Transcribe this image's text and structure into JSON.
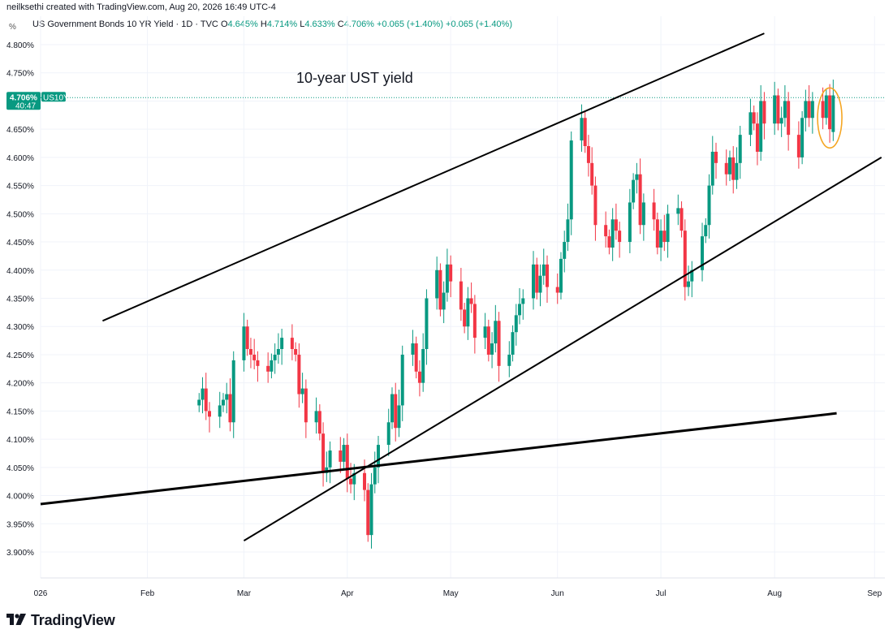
{
  "header": {
    "credit": "neilksethi created with TradingView.com, Aug 20, 2026 16:49 UTC-4"
  },
  "legend": {
    "symbol": "US Government Bonds 10 YR Yield · 1D · TVC",
    "o_label": "O",
    "o_value": "4.645%",
    "h_label": "H",
    "h_value": "4.714%",
    "l_label": "L",
    "l_value": "4.633%",
    "c_label": "C",
    "c_value": "4.706%",
    "change1": "+0.065 (+1.40%)",
    "change2": "+0.065 (+1.40%)"
  },
  "axis_unit": "%",
  "price_tag": {
    "value": "4.706%",
    "countdown": "40:47",
    "ticker": "US10Y"
  },
  "footer": {
    "brand": "TradingView"
  },
  "colors": {
    "up": "#089981",
    "down": "#f23645",
    "grid": "#f0f3fa",
    "annotation": "#f5a623",
    "lines": "#000000"
  },
  "chart_data": {
    "type": "candlestick",
    "title": "10-year UST yield",
    "ylim": [
      3.86,
      4.82
    ],
    "y_ticks": [
      3.9,
      3.95,
      4.0,
      4.05,
      4.1,
      4.15,
      4.2,
      4.25,
      4.3,
      4.35,
      4.4,
      4.45,
      4.5,
      4.55,
      4.6,
      4.65,
      4.7,
      4.75,
      4.8
    ],
    "y_tick_labels": [
      "3.900%",
      "3.950%",
      "4.000%",
      "4.050%",
      "4.100%",
      "4.150%",
      "4.200%",
      "4.250%",
      "4.300%",
      "4.350%",
      "4.400%",
      "4.450%",
      "4.500%",
      "4.550%",
      "4.600%",
      "4.650%",
      "4.700%",
      "4.750%",
      "4.800%"
    ],
    "x_start": "2026-01-02",
    "x_end": "2026-09-04",
    "x_ticks": [
      {
        "date": "2026-01-02",
        "label": "026"
      },
      {
        "date": "2026-02-02",
        "label": "Feb"
      },
      {
        "date": "2026-03-02",
        "label": "Mar"
      },
      {
        "date": "2026-04-01",
        "label": "Apr"
      },
      {
        "date": "2026-05-01",
        "label": "May"
      },
      {
        "date": "2026-06-01",
        "label": "Jun"
      },
      {
        "date": "2026-07-01",
        "label": "Jul"
      },
      {
        "date": "2026-08-03",
        "label": "Aug"
      },
      {
        "date": "2026-09-01",
        "label": "Sep"
      }
    ],
    "last_close": 4.706,
    "closes": [
      4.17,
      4.19,
      4.15,
      4.14,
      4.16,
      4.17,
      4.18,
      4.13,
      4.24,
      4.3,
      4.26,
      4.25,
      4.24,
      4.23,
      4.22,
      4.24,
      4.25,
      4.26,
      4.28,
      4.26,
      4.25,
      4.18,
      4.19,
      4.13,
      4.15,
      4.11,
      4.04,
      4.05,
      4.08,
      4.06,
      4.09,
      4.03,
      4.02,
      4.04,
      4.01,
      3.93,
      4.02,
      4.05,
      4.09,
      4.13,
      4.18,
      4.12,
      4.16,
      4.25,
      4.27,
      4.22,
      4.2,
      4.26,
      4.35,
      4.4,
      4.33,
      4.36,
      4.41,
      4.38,
      4.33,
      4.3,
      4.35,
      4.34,
      4.28,
      4.3,
      4.25,
      4.27,
      4.31,
      4.23,
      4.25,
      4.29,
      4.32,
      4.34,
      4.35,
      4.41,
      4.36,
      4.39,
      4.41,
      4.37,
      4.36,
      4.42,
      4.45,
      4.49,
      4.63,
      4.67,
      4.62,
      4.59,
      4.55,
      4.48,
      4.46,
      4.44,
      4.49,
      4.47,
      4.45,
      4.52,
      4.56,
      4.57,
      4.48,
      4.52,
      4.49,
      4.44,
      4.47,
      4.45,
      4.5,
      4.51,
      4.47,
      4.37,
      4.38,
      4.4,
      4.46,
      4.48,
      4.55,
      4.61,
      4.59,
      4.57,
      4.6,
      4.56,
      4.59,
      4.64,
      4.68,
      4.66,
      4.61,
      4.7,
      4.66,
      4.71,
      4.66,
      4.67,
      4.7,
      4.64,
      4.6,
      4.67,
      4.7,
      4.67,
      4.7,
      4.67,
      4.71,
      4.65,
      4.71
    ],
    "trendlines": [
      {
        "name": "channel-upper",
        "from": {
          "date": "2026-01-20",
          "value": 4.31
        },
        "to": {
          "date": "2026-07-31",
          "value": 4.82
        }
      },
      {
        "name": "channel-lower",
        "from": {
          "date": "2026-03-02",
          "value": 3.92
        },
        "to": {
          "date": "2026-09-03",
          "value": 4.6
        }
      },
      {
        "name": "long-support",
        "from": {
          "date": "2026-01-02",
          "value": 3.985
        },
        "to": {
          "date": "2026-08-21",
          "value": 4.146
        }
      }
    ],
    "highlight": {
      "date": "2026-08-19",
      "value": 4.67
    }
  }
}
